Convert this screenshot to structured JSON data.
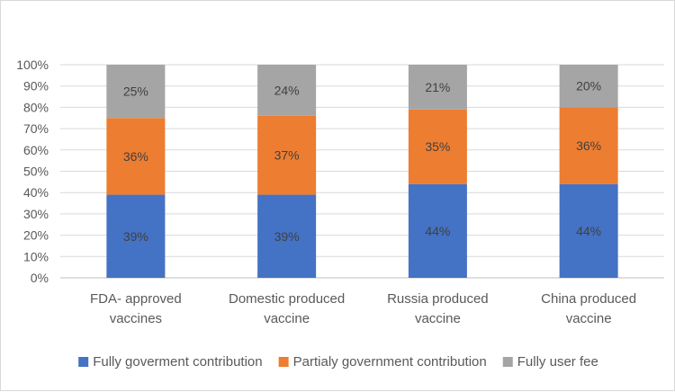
{
  "chart_data": {
    "type": "bar",
    "stacked": true,
    "percent": true,
    "categories": [
      [
        "FDA- approved",
        "vaccines"
      ],
      [
        "Domestic produced",
        "vaccine"
      ],
      [
        "Russia produced",
        "vaccine"
      ],
      [
        "China produced",
        "vaccine"
      ]
    ],
    "series": [
      {
        "name": "Fully goverment contribution",
        "color": "#4472c4",
        "values": [
          39,
          39,
          44,
          44
        ],
        "labels": [
          "39%",
          "39%",
          "44%",
          "44%"
        ]
      },
      {
        "name": "Partialy government contribution",
        "color": "#ed7d31",
        "values": [
          36,
          37,
          35,
          36
        ],
        "labels": [
          "36%",
          "37%",
          "35%",
          "36%"
        ]
      },
      {
        "name": "Fully user  fee",
        "color": "#a5a5a5",
        "values": [
          25,
          24,
          21,
          20
        ],
        "labels": [
          "25%",
          "24%",
          "21%",
          "20%"
        ]
      }
    ],
    "y_ticks": [
      "0%",
      "10%",
      "20%",
      "30%",
      "40%",
      "50%",
      "60%",
      "70%",
      "80%",
      "90%",
      "100%"
    ],
    "ylim": [
      0,
      100
    ],
    "grid": true,
    "legend": "bottom"
  }
}
